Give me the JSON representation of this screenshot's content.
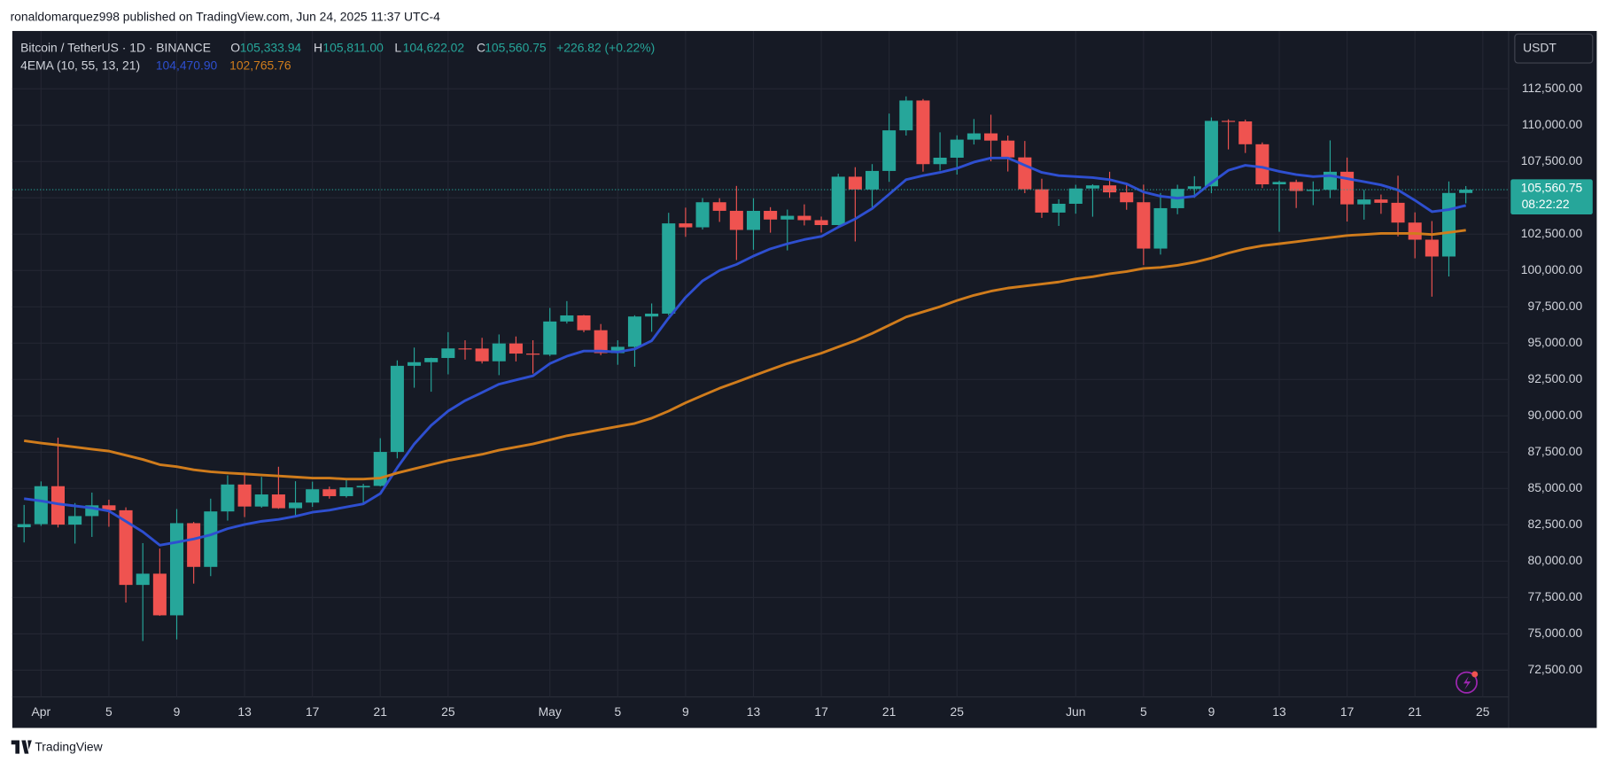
{
  "header": {
    "byline": "ronaldomarquez998 published on TradingView.com, Jun 24, 2025 11:37 UTC-4"
  },
  "footer": {
    "brand": "TradingView"
  },
  "chart_data": {
    "type": "candlestick",
    "title": "Bitcoin / TetherUS · 1D · BINANCE",
    "legend": {
      "o_key": "O",
      "open": "105,333.94",
      "h_key": "H",
      "high": "105,811.00",
      "l_key": "L",
      "low": "104,622.02",
      "c_key": "C",
      "close": "105,560.75",
      "change": "+226.82 (+0.22%)",
      "indicator": "4EMA (10, 55, 13, 21)"
    },
    "currency": "USDT",
    "price_tag": {
      "price": "105,560.75",
      "countdown": "08:22:22"
    },
    "up_color": "#26a69a",
    "down_color": "#ef5350",
    "grid": true,
    "x": [
      "2025-03-31",
      "2025-04-01",
      "2025-04-02",
      "2025-04-03",
      "2025-04-04",
      "2025-04-05",
      "2025-04-06",
      "2025-04-07",
      "2025-04-08",
      "2025-04-09",
      "2025-04-10",
      "2025-04-11",
      "2025-04-12",
      "2025-04-13",
      "2025-04-14",
      "2025-04-15",
      "2025-04-16",
      "2025-04-17",
      "2025-04-18",
      "2025-04-19",
      "2025-04-20",
      "2025-04-21",
      "2025-04-22",
      "2025-04-23",
      "2025-04-24",
      "2025-04-25",
      "2025-04-26",
      "2025-04-27",
      "2025-04-28",
      "2025-04-29",
      "2025-04-30",
      "2025-05-01",
      "2025-05-02",
      "2025-05-03",
      "2025-05-04",
      "2025-05-05",
      "2025-05-06",
      "2025-05-07",
      "2025-05-08",
      "2025-05-09",
      "2025-05-10",
      "2025-05-11",
      "2025-05-12",
      "2025-05-13",
      "2025-05-14",
      "2025-05-15",
      "2025-05-16",
      "2025-05-17",
      "2025-05-18",
      "2025-05-19",
      "2025-05-20",
      "2025-05-21",
      "2025-05-22",
      "2025-05-23",
      "2025-05-24",
      "2025-05-25",
      "2025-05-26",
      "2025-05-27",
      "2025-05-28",
      "2025-05-29",
      "2025-05-30",
      "2025-05-31",
      "2025-06-01",
      "2025-06-02",
      "2025-06-03",
      "2025-06-04",
      "2025-06-05",
      "2025-06-06",
      "2025-06-07",
      "2025-06-08",
      "2025-06-09",
      "2025-06-10",
      "2025-06-11",
      "2025-06-12",
      "2025-06-13",
      "2025-06-14",
      "2025-06-15",
      "2025-06-16",
      "2025-06-17",
      "2025-06-18",
      "2025-06-19",
      "2025-06-20",
      "2025-06-21",
      "2025-06-22",
      "2025-06-23",
      "2025-06-24"
    ],
    "open": [
      82336,
      82548,
      85159,
      82516,
      83102,
      83843,
      83504,
      78367,
      79140,
      76274,
      82615,
      79607,
      83423,
      85276,
      83760,
      84591,
      83643,
      84030,
      84947,
      84474,
      85077,
      85179,
      87516,
      93442,
      93691,
      93980,
      94638,
      94630,
      93754,
      94979,
      94284,
      94207,
      96492,
      96910,
      95891,
      94316,
      94749,
      96834,
      97032,
      103241,
      102971,
      104696,
      104106,
      102791,
      104103,
      103507,
      103763,
      103463,
      103126,
      106454,
      105573,
      106850,
      109643,
      111696,
      107318,
      107761,
      109004,
      109434,
      108938,
      107781,
      105589,
      103985,
      104591,
      105642,
      105857,
      105376,
      104696,
      101508,
      104288,
      105615,
      105793,
      110294,
      110257,
      108686,
      105929,
      106091,
      105472,
      105552,
      106794,
      104551,
      104886,
      104658,
      103297,
      102120,
      100963,
      105333.94
    ],
    "high": [
      83870,
      85487,
      88500,
      83998,
      84720,
      84230,
      83704,
      81243,
      80867,
      83588,
      82700,
      84300,
      85905,
      86100,
      85799,
      86496,
      85500,
      85470,
      85132,
      85640,
      85320,
      88460,
      93817,
      94696,
      94000,
      95758,
      95199,
      95369,
      95600,
      95461,
      95200,
      97424,
      97895,
      96943,
      96318,
      95199,
      96920,
      97732,
      103969,
      104324,
      104984,
      104972,
      105819,
      104976,
      104356,
      104192,
      104550,
      103709,
      106660,
      107108,
      107320,
      110797,
      111980,
      111800,
      109506,
      109299,
      110422,
      110718,
      109284,
      108910,
      106313,
      104900,
      105900,
      105935,
      106794,
      106000,
      105909,
      105333,
      105900,
      106488,
      110530,
      110400,
      110384,
      108813,
      106182,
      106250,
      106128,
      108952,
      107771,
      105550,
      105226,
      106524,
      104000,
      103400,
      106128,
      105811
    ],
    "low": [
      81290,
      82430,
      82320,
      81211,
      81670,
      82370,
      77153,
      74508,
      76239,
      74620,
      78456,
      78971,
      82792,
      83034,
      83678,
      83600,
      83111,
      83736,
      84303,
      84373,
      83949,
      85144,
      87076,
      91935,
      91660,
      92855,
      93870,
      93602,
      92800,
      93742,
      92910,
      94111,
      96350,
      95753,
      94172,
      93514,
      93377,
      95784,
      96913,
      102316,
      102818,
      103345,
      100719,
      101429,
      102602,
      101383,
      103100,
      102612,
      103105,
      102000,
      104184,
      106100,
      109285,
      106800,
      106875,
      106600,
      108670,
      107516,
      106812,
      105322,
      103621,
      103068,
      103909,
      103700,
      105000,
      104179,
      100372,
      101095,
      103871,
      105000,
      105318,
      108331,
      108086,
      105671,
      102664,
      104300,
      104494,
      104980,
      103371,
      103500,
      103900,
      102345,
      100838,
      98200,
      99588,
      104622.02
    ],
    "close": [
      82548,
      85159,
      82516,
      83102,
      83843,
      83504,
      78367,
      79140,
      76274,
      82615,
      79607,
      83423,
      85276,
      83760,
      84591,
      83643,
      84030,
      84947,
      84474,
      85077,
      85179,
      87516,
      93442,
      93691,
      93980,
      94638,
      94630,
      93754,
      94979,
      94284,
      94207,
      96492,
      96910,
      95891,
      94316,
      94749,
      96834,
      97032,
      103241,
      102971,
      104696,
      104106,
      102791,
      104103,
      103507,
      103763,
      103463,
      103126,
      106454,
      105573,
      106850,
      109643,
      111696,
      107318,
      107761,
      109004,
      109434,
      108938,
      107781,
      105589,
      103985,
      104591,
      105642,
      105857,
      105376,
      104696,
      101508,
      104288,
      105615,
      105793,
      110294,
      110257,
      108686,
      105929,
      106091,
      105472,
      105552,
      106794,
      104551,
      104886,
      104658,
      103297,
      102120,
      100963,
      105333.94,
      105560.75
    ],
    "lines": [
      {
        "color": "#2e4fd0",
        "label": "104,470.90",
        "values": [
          84300,
          84150,
          83940,
          83800,
          83660,
          83450,
          82740,
          82020,
          81100,
          81310,
          81530,
          81810,
          82240,
          82520,
          82740,
          82880,
          83090,
          83370,
          83510,
          83730,
          83940,
          84650,
          86430,
          88060,
          89340,
          90330,
          91050,
          91610,
          92180,
          92470,
          92750,
          93600,
          94100,
          94460,
          94460,
          94390,
          94600,
          95170,
          96730,
          98150,
          99290,
          100000,
          100420,
          100990,
          101490,
          101840,
          102130,
          102340,
          102980,
          103550,
          104260,
          105250,
          106250,
          106530,
          106750,
          107030,
          107460,
          107740,
          107740,
          107240,
          106750,
          106530,
          106460,
          106390,
          106250,
          105960,
          105400,
          105110,
          104970,
          105110,
          106040,
          106890,
          107240,
          107100,
          106820,
          106600,
          106460,
          106530,
          106320,
          106110,
          105890,
          105540,
          104830,
          104050,
          104190,
          104470.9
        ]
      },
      {
        "color": "#d07c1c",
        "label": "102,765.76",
        "values": [
          88280,
          88130,
          87990,
          87850,
          87710,
          87570,
          87290,
          87000,
          86640,
          86500,
          86290,
          86150,
          86070,
          86000,
          85930,
          85860,
          85790,
          85720,
          85720,
          85650,
          85650,
          85720,
          86070,
          86360,
          86640,
          86930,
          87140,
          87350,
          87640,
          87850,
          88060,
          88350,
          88630,
          88840,
          89060,
          89270,
          89480,
          89840,
          90330,
          90900,
          91400,
          91900,
          92320,
          92750,
          93180,
          93600,
          93960,
          94310,
          94740,
          95170,
          95670,
          96230,
          96800,
          97160,
          97510,
          97940,
          98290,
          98580,
          98790,
          98930,
          99070,
          99210,
          99430,
          99570,
          99780,
          99930,
          100140,
          100210,
          100350,
          100570,
          100850,
          101200,
          101490,
          101700,
          101840,
          101980,
          102130,
          102270,
          102410,
          102480,
          102550,
          102550,
          102550,
          102480,
          102620,
          102765.76
        ]
      }
    ],
    "ylim": [
      70658,
      116480
    ],
    "yticks": [
      {
        "value": 72500,
        "label": "72,500.00"
      },
      {
        "value": 75000,
        "label": "75,000.00"
      },
      {
        "value": 77500,
        "label": "77,500.00"
      },
      {
        "value": 80000,
        "label": "80,000.00"
      },
      {
        "value": 82500,
        "label": "82,500.00"
      },
      {
        "value": 85000,
        "label": "85,000.00"
      },
      {
        "value": 87500,
        "label": "87,500.00"
      },
      {
        "value": 90000,
        "label": "90,000.00"
      },
      {
        "value": 92500,
        "label": "92,500.00"
      },
      {
        "value": 95000,
        "label": "95,000.00"
      },
      {
        "value": 97500,
        "label": "97,500.00"
      },
      {
        "value": 100000,
        "label": "100,000.00"
      },
      {
        "value": 102500,
        "label": "102,500.00"
      },
      {
        "value": 105000,
        "label": "105,000.00"
      },
      {
        "value": 107500,
        "label": "107,500.00"
      },
      {
        "value": 110000,
        "label": "110,000.00"
      },
      {
        "value": 112500,
        "label": "112,500.00"
      }
    ],
    "xticks": [
      {
        "value": "2025-04-01",
        "label": "Apr"
      },
      {
        "value": "2025-04-05",
        "label": "5"
      },
      {
        "value": "2025-04-09",
        "label": "9"
      },
      {
        "value": "2025-04-13",
        "label": "13"
      },
      {
        "value": "2025-04-17",
        "label": "17"
      },
      {
        "value": "2025-04-21",
        "label": "21"
      },
      {
        "value": "2025-04-25",
        "label": "25"
      },
      {
        "value": "2025-05-01",
        "label": "May"
      },
      {
        "value": "2025-05-05",
        "label": "5"
      },
      {
        "value": "2025-05-09",
        "label": "9"
      },
      {
        "value": "2025-05-13",
        "label": "13"
      },
      {
        "value": "2025-05-17",
        "label": "17"
      },
      {
        "value": "2025-05-21",
        "label": "21"
      },
      {
        "value": "2025-05-25",
        "label": "25"
      },
      {
        "value": "2025-06-01",
        "label": "Jun"
      },
      {
        "value": "2025-06-05",
        "label": "5"
      },
      {
        "value": "2025-06-09",
        "label": "9"
      },
      {
        "value": "2025-06-13",
        "label": "13"
      },
      {
        "value": "2025-06-17",
        "label": "17"
      },
      {
        "value": "2025-06-21",
        "label": "21"
      },
      {
        "value": "2025-06-25",
        "label": "25"
      }
    ]
  }
}
